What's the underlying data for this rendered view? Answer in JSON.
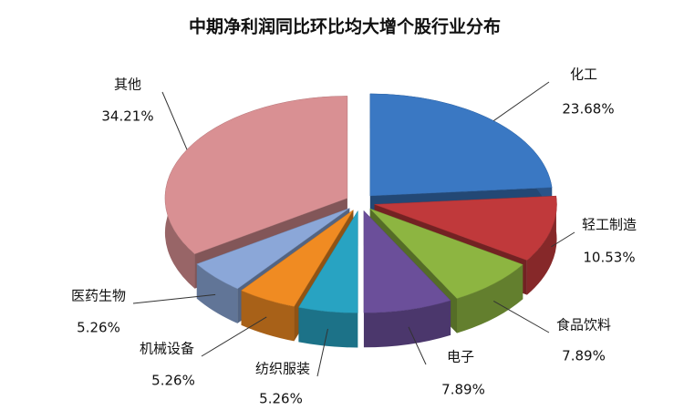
{
  "chart_data": {
    "type": "pie3d",
    "title": "中期净利润同比环比均大增个股行业分布",
    "categories": [
      "化工",
      "轻工制造",
      "食品饮料",
      "电子",
      "纺织服装",
      "机械设备",
      "医药生物",
      "其他"
    ],
    "values": [
      23.68,
      10.53,
      7.89,
      7.89,
      5.26,
      5.26,
      5.26,
      34.21
    ],
    "value_labels": [
      "23.68%",
      "10.53%",
      "7.89%",
      "7.89%",
      "5.26%",
      "5.26%",
      "5.26%",
      "34.21%"
    ],
    "colors": [
      "#3a78c3",
      "#c0393b",
      "#8db541",
      "#6b4f9a",
      "#28a3c2",
      "#f08b22",
      "#8ba7d8",
      "#d99093"
    ]
  }
}
